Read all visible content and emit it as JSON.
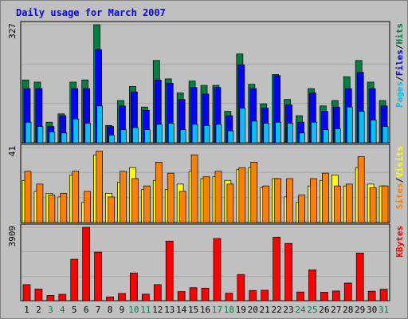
{
  "title": "Daily usage for March 2007",
  "colors": {
    "background": "#c0c0c0",
    "grid": "#a8a8a8",
    "hits": "#008040",
    "files": "#0000ff",
    "pages": "#00c0ff",
    "visits": "#ffff00",
    "sites": "#ff8000",
    "kbytes": "#ff0000",
    "weekend_label": "#008040",
    "weekday_label": "#000000"
  },
  "chart_data": [
    {
      "type": "bar",
      "panel": "top",
      "ymax_label": "327",
      "ymax": 327,
      "legend": [
        {
          "text": "Pages",
          "color": "#00c0ff"
        },
        {
          "text": "/",
          "color": "#000000"
        },
        {
          "text": "Files",
          "color": "#0000ff"
        },
        {
          "text": "/",
          "color": "#000000"
        },
        {
          "text": "Hits",
          "color": "#008040"
        }
      ],
      "categories": [
        "1",
        "2",
        "3",
        "4",
        "5",
        "6",
        "7",
        "8",
        "9",
        "10",
        "11",
        "12",
        "13",
        "14",
        "15",
        "16",
        "17",
        "18",
        "19",
        "20",
        "21",
        "22",
        "23",
        "24",
        "25",
        "26",
        "27",
        "28",
        "29",
        "30",
        "31"
      ],
      "weekend_days": [
        "3",
        "4",
        "10",
        "11",
        "17",
        "18",
        "24",
        "25",
        "31"
      ],
      "series": [
        {
          "name": "Hits",
          "values": [
            174,
            168,
            57,
            80,
            168,
            174,
            327,
            48,
            117,
            156,
            99,
            228,
            177,
            138,
            171,
            159,
            159,
            87,
            246,
            162,
            108,
            189,
            120,
            75,
            150,
            102,
            117,
            183,
            228,
            168,
            117
          ]
        },
        {
          "name": "Files",
          "values": [
            150,
            150,
            45,
            75,
            150,
            150,
            258,
            45,
            102,
            141,
            90,
            174,
            165,
            120,
            153,
            135,
            153,
            75,
            216,
            150,
            96,
            186,
            105,
            57,
            138,
            87,
            99,
            150,
            195,
            150,
            102
          ]
        },
        {
          "name": "Pages",
          "values": [
            57,
            45,
            30,
            27,
            66,
            54,
            102,
            21,
            36,
            42,
            36,
            51,
            54,
            36,
            51,
            48,
            51,
            33,
            96,
            60,
            54,
            57,
            54,
            27,
            57,
            36,
            39,
            99,
            87,
            63,
            45
          ]
        }
      ]
    },
    {
      "type": "bar",
      "panel": "middle",
      "ymax_label": "41",
      "ymax": 41,
      "legend": [
        {
          "text": "Sites",
          "color": "#ff8000"
        },
        {
          "text": "/",
          "color": "#000000"
        },
        {
          "text": "Visits",
          "color": "#ffff00"
        }
      ],
      "categories": [
        "1",
        "2",
        "3",
        "4",
        "5",
        "6",
        "7",
        "8",
        "9",
        "10",
        "11",
        "12",
        "13",
        "14",
        "15",
        "16",
        "17",
        "18",
        "19",
        "20",
        "21",
        "22",
        "23",
        "24",
        "25",
        "26",
        "27",
        "28",
        "29",
        "30",
        "31"
      ],
      "weekend_days": [
        "3",
        "4",
        "10",
        "11",
        "17",
        "18",
        "24",
        "25",
        "31"
      ],
      "series": [
        {
          "name": "Visits",
          "values": [
            23,
            17,
            16,
            14,
            26,
            11,
            37,
            16,
            22,
            30,
            18,
            23,
            18,
            21,
            28,
            24,
            25,
            23,
            29,
            30,
            19,
            24,
            14,
            11,
            20,
            23,
            26,
            20,
            30,
            21,
            20
          ]
        },
        {
          "name": "Sites",
          "values": [
            28,
            21,
            15,
            16,
            28,
            17,
            39,
            14,
            28,
            24,
            20,
            33,
            27,
            17,
            37,
            25,
            28,
            21,
            30,
            33,
            20,
            24,
            24,
            15,
            24,
            27,
            20,
            21,
            36,
            19,
            20
          ]
        }
      ]
    },
    {
      "type": "bar",
      "panel": "bottom",
      "ymax_label": "3909",
      "ymax": 3909,
      "legend": [
        {
          "text": "KBytes",
          "color": "#ff0000"
        }
      ],
      "categories": [
        "1",
        "2",
        "3",
        "4",
        "5",
        "6",
        "7",
        "8",
        "9",
        "10",
        "11",
        "12",
        "13",
        "14",
        "15",
        "16",
        "17",
        "18",
        "19",
        "20",
        "21",
        "22",
        "23",
        "24",
        "25",
        "26",
        "27",
        "28",
        "29",
        "30",
        "31"
      ],
      "weekend_days": [
        "3",
        "4",
        "10",
        "11",
        "17",
        "18",
        "24",
        "25",
        "31"
      ],
      "series": [
        {
          "name": "KBytes",
          "values": [
            855,
            618,
            276,
            338,
            2206,
            3909,
            2588,
            200,
            383,
            1475,
            346,
            856,
            3174,
            486,
            691,
            669,
            3309,
            397,
            1392,
            542,
            553,
            3383,
            3049,
            462,
            1644,
            452,
            515,
            936,
            2536,
            503,
            610
          ]
        }
      ]
    }
  ]
}
